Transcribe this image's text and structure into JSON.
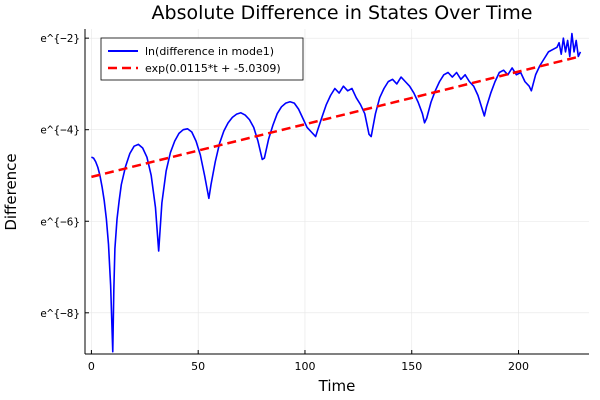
{
  "chart_data": {
    "type": "line",
    "title": "Absolute Difference in States Over Time",
    "xlabel": "Time",
    "ylabel": "Difference",
    "xlim": [
      -3,
      233
    ],
    "ylim": [
      -8.9,
      -1.8
    ],
    "grid": true,
    "legend_position": "top-left",
    "x_ticks": [
      {
        "value": 0,
        "label": "0"
      },
      {
        "value": 50,
        "label": "50"
      },
      {
        "value": 100,
        "label": "100"
      },
      {
        "value": 150,
        "label": "150"
      },
      {
        "value": 200,
        "label": "200"
      }
    ],
    "y_ticks": [
      {
        "value": -2,
        "label": "e^{−2}"
      },
      {
        "value": -4,
        "label": "e^{−4}"
      },
      {
        "value": -6,
        "label": "e^{−6}"
      },
      {
        "value": -8,
        "label": "e^{−8}"
      }
    ],
    "series": [
      {
        "name": "ln(difference in mode1)",
        "color": "#0000ff",
        "style": "solid",
        "points": [
          [
            0,
            -4.6
          ],
          [
            1,
            -4.62
          ],
          [
            2,
            -4.7
          ],
          [
            3,
            -4.82
          ],
          [
            4,
            -5.0
          ],
          [
            5,
            -5.25
          ],
          [
            6,
            -5.55
          ],
          [
            7,
            -5.95
          ],
          [
            8,
            -6.5
          ],
          [
            9,
            -7.4
          ],
          [
            10,
            -8.85
          ],
          [
            10.5,
            -7.5
          ],
          [
            11,
            -6.6
          ],
          [
            12,
            -5.95
          ],
          [
            13,
            -5.55
          ],
          [
            14,
            -5.2
          ],
          [
            16,
            -4.8
          ],
          [
            18,
            -4.52
          ],
          [
            20,
            -4.36
          ],
          [
            22,
            -4.32
          ],
          [
            24,
            -4.4
          ],
          [
            26,
            -4.6
          ],
          [
            28,
            -5.0
          ],
          [
            30,
            -5.7
          ],
          [
            31.5,
            -6.65
          ],
          [
            33,
            -5.6
          ],
          [
            35,
            -4.9
          ],
          [
            37,
            -4.5
          ],
          [
            39,
            -4.25
          ],
          [
            41,
            -4.08
          ],
          [
            43,
            -4.0
          ],
          [
            45,
            -3.98
          ],
          [
            47,
            -4.05
          ],
          [
            49,
            -4.25
          ],
          [
            51,
            -4.55
          ],
          [
            53,
            -5.0
          ],
          [
            55,
            -5.5
          ],
          [
            56,
            -5.2
          ],
          [
            58,
            -4.7
          ],
          [
            60,
            -4.3
          ],
          [
            62,
            -4.03
          ],
          [
            64,
            -3.85
          ],
          [
            66,
            -3.73
          ],
          [
            68,
            -3.66
          ],
          [
            70,
            -3.63
          ],
          [
            72,
            -3.68
          ],
          [
            74,
            -3.78
          ],
          [
            76,
            -3.95
          ],
          [
            78,
            -4.25
          ],
          [
            80,
            -4.65
          ],
          [
            81,
            -4.62
          ],
          [
            83,
            -4.2
          ],
          [
            85,
            -3.9
          ],
          [
            87,
            -3.65
          ],
          [
            89,
            -3.5
          ],
          [
            91,
            -3.42
          ],
          [
            93,
            -3.39
          ],
          [
            95,
            -3.42
          ],
          [
            97,
            -3.55
          ],
          [
            99,
            -3.75
          ],
          [
            101,
            -3.95
          ],
          [
            103,
            -4.05
          ],
          [
            105,
            -4.15
          ],
          [
            106,
            -4.0
          ],
          [
            108,
            -3.72
          ],
          [
            110,
            -3.45
          ],
          [
            112,
            -3.25
          ],
          [
            114,
            -3.1
          ],
          [
            116,
            -3.2
          ],
          [
            118,
            -3.05
          ],
          [
            120,
            -3.15
          ],
          [
            122,
            -3.1
          ],
          [
            124,
            -3.3
          ],
          [
            126,
            -3.45
          ],
          [
            128,
            -3.65
          ],
          [
            130,
            -4.1
          ],
          [
            131,
            -4.15
          ],
          [
            133,
            -3.65
          ],
          [
            135,
            -3.3
          ],
          [
            137,
            -3.1
          ],
          [
            139,
            -2.95
          ],
          [
            141,
            -2.9
          ],
          [
            143,
            -3.0
          ],
          [
            145,
            -2.85
          ],
          [
            147,
            -2.95
          ],
          [
            149,
            -3.05
          ],
          [
            151,
            -3.2
          ],
          [
            153,
            -3.4
          ],
          [
            155,
            -3.65
          ],
          [
            156,
            -3.85
          ],
          [
            157,
            -3.75
          ],
          [
            159,
            -3.4
          ],
          [
            161,
            -3.15
          ],
          [
            163,
            -2.95
          ],
          [
            165,
            -2.8
          ],
          [
            167,
            -2.75
          ],
          [
            169,
            -2.85
          ],
          [
            171,
            -2.75
          ],
          [
            173,
            -2.9
          ],
          [
            175,
            -2.8
          ],
          [
            177,
            -2.95
          ],
          [
            179,
            -3.05
          ],
          [
            181,
            -3.25
          ],
          [
            183,
            -3.55
          ],
          [
            184,
            -3.7
          ],
          [
            185,
            -3.5
          ],
          [
            187,
            -3.2
          ],
          [
            189,
            -2.95
          ],
          [
            191,
            -2.75
          ],
          [
            193,
            -2.7
          ],
          [
            195,
            -2.8
          ],
          [
            197,
            -2.65
          ],
          [
            199,
            -2.8
          ],
          [
            201,
            -2.75
          ],
          [
            203,
            -2.95
          ],
          [
            205,
            -3.05
          ],
          [
            206,
            -3.15
          ],
          [
            208,
            -2.8
          ],
          [
            210,
            -2.6
          ],
          [
            212,
            -2.45
          ],
          [
            214,
            -2.3
          ],
          [
            216,
            -2.25
          ],
          [
            218,
            -2.2
          ],
          [
            219,
            -2.1
          ],
          [
            220,
            -2.35
          ],
          [
            221,
            -2.0
          ],
          [
            222,
            -2.3
          ],
          [
            223,
            -2.05
          ],
          [
            224,
            -2.4
          ],
          [
            225,
            -1.9
          ],
          [
            226,
            -2.3
          ],
          [
            227,
            -2.05
          ],
          [
            228,
            -2.4
          ],
          [
            229,
            -2.3
          ]
        ]
      },
      {
        "name": "exp(0.0115*t + -5.0309)",
        "color": "#ff0000",
        "style": "dashed",
        "slope": 0.0115,
        "intercept": -5.0309,
        "t_range": [
          0,
          229
        ]
      }
    ]
  }
}
